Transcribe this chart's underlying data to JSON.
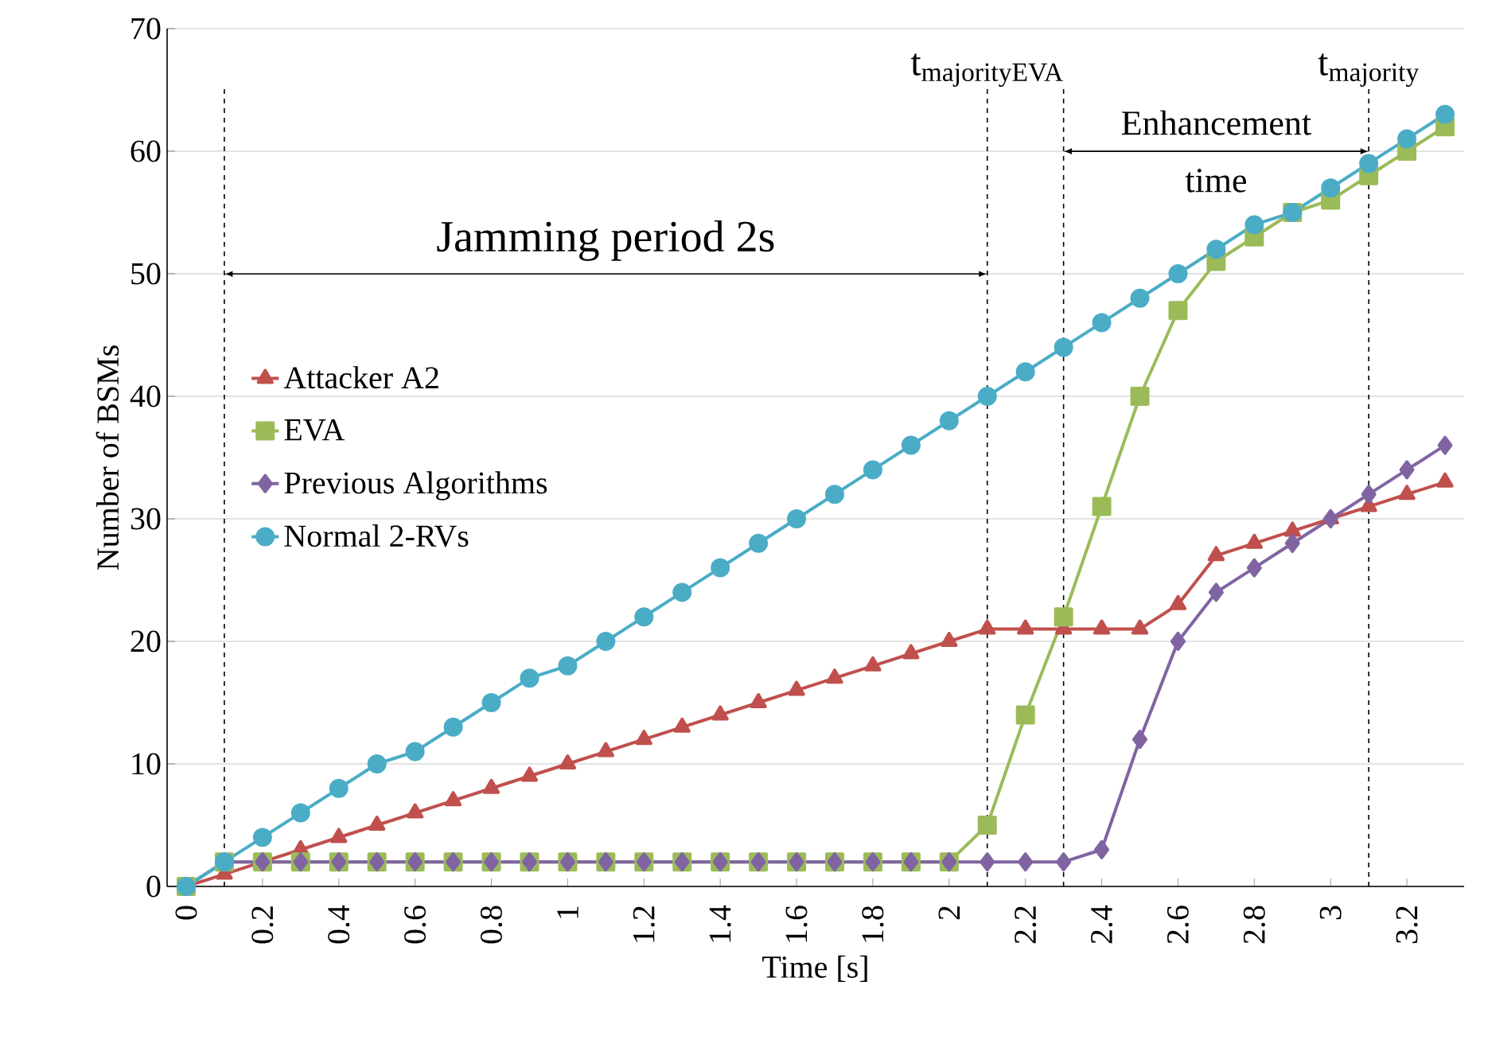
{
  "chart_data": {
    "type": "line",
    "xlabel": "Time [s]",
    "ylabel": "Number of BSMs",
    "x": [
      0,
      0.1,
      0.2,
      0.3,
      0.4,
      0.5,
      0.6,
      0.7,
      0.8,
      0.9,
      1.0,
      1.1,
      1.2,
      1.3,
      1.4,
      1.5,
      1.6,
      1.7,
      1.8,
      1.9,
      2.0,
      2.1,
      2.2,
      2.3,
      2.4,
      2.5,
      2.6,
      2.7,
      2.8,
      2.9,
      3.0,
      3.1,
      3.2,
      3.3
    ],
    "series": [
      {
        "name": "Attacker A2",
        "color": "#c0504d",
        "marker": "triangle",
        "values": [
          0,
          1,
          2,
          3,
          4,
          5,
          6,
          7,
          8,
          9,
          10,
          11,
          12,
          13,
          14,
          15,
          16,
          17,
          18,
          19,
          20,
          21,
          21,
          21,
          21,
          21,
          23,
          27,
          28,
          29,
          30,
          31,
          32,
          33
        ]
      },
      {
        "name": "EVA",
        "color": "#9bbb59",
        "marker": "square",
        "values": [
          0,
          2,
          2,
          2,
          2,
          2,
          2,
          2,
          2,
          2,
          2,
          2,
          2,
          2,
          2,
          2,
          2,
          2,
          2,
          2,
          2,
          5,
          14,
          22,
          31,
          40,
          47,
          51,
          53,
          55,
          56,
          58,
          60,
          62
        ]
      },
      {
        "name": "Previous Algorithms",
        "color": "#8064a2",
        "marker": "diamond",
        "values": [
          0,
          2,
          2,
          2,
          2,
          2,
          2,
          2,
          2,
          2,
          2,
          2,
          2,
          2,
          2,
          2,
          2,
          2,
          2,
          2,
          2,
          2,
          2,
          2,
          3,
          12,
          20,
          24,
          26,
          28,
          30,
          32,
          34,
          36
        ]
      },
      {
        "name": "Normal 2-RVs",
        "color": "#4bacc6",
        "marker": "circle",
        "values": [
          0,
          2,
          4,
          6,
          8,
          10,
          11,
          13,
          15,
          17,
          18,
          20,
          22,
          24,
          26,
          28,
          30,
          32,
          34,
          36,
          38,
          40,
          42,
          44,
          46,
          48,
          50,
          52,
          54,
          55,
          57,
          59,
          61,
          63
        ]
      }
    ],
    "xlim": [
      -0.05,
      3.35
    ],
    "xticks": [
      0,
      0.2,
      0.4,
      0.6,
      0.8,
      1,
      1.2,
      1.4,
      1.6,
      1.8,
      2,
      2.2,
      2.4,
      2.6,
      2.8,
      3,
      3.2
    ],
    "ylim": [
      0,
      70
    ],
    "yticks": [
      0,
      10,
      20,
      30,
      40,
      50,
      60,
      70
    ],
    "grid": "y",
    "legend": "left",
    "line_style": "solid",
    "ref_lines": [
      {
        "axis": "x",
        "value": 0.1,
        "line_style": "dashed"
      },
      {
        "axis": "x",
        "value": 2.1,
        "line_style": "dashed",
        "label": "\\text{t}_{\\text{majorityEVA}}"
      },
      {
        "axis": "x",
        "value": 2.3,
        "line_style": "dashed"
      },
      {
        "axis": "x",
        "value": 3.1,
        "line_style": "dashed",
        "label": "\\text{t}_{\\text{majority}}"
      }
    ],
    "annotations": [
      "Jamming  period 2s",
      "Enhancement time"
    ]
  }
}
